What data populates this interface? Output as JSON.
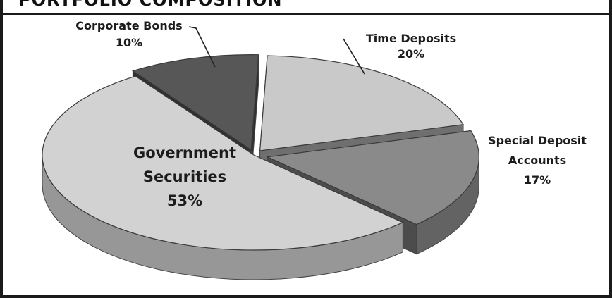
{
  "header": {
    "title": "PORTFOLIO COMPOSITION"
  },
  "chart_data": {
    "type": "pie",
    "title": "PORTFOLIO COMPOSITION",
    "categories": [
      "Time Deposits",
      "Special Deposit Accounts",
      "Government Securities",
      "Corporate Bonds"
    ],
    "values": [
      20,
      17,
      53,
      10
    ],
    "unit": "%",
    "style": "3d",
    "exploded": true,
    "labels": [
      {
        "lines": [
          "Time Deposits",
          "20%"
        ]
      },
      {
        "lines": [
          "Special Deposit",
          "Accounts",
          "17%"
        ]
      },
      {
        "lines": [
          "Government",
          "Securities",
          "53%"
        ]
      },
      {
        "lines": [
          "Corporate Bonds",
          "10%"
        ]
      }
    ],
    "colors": [
      "#c9c9c9",
      "#8a8a8a",
      "#d2d2d2",
      "#575757"
    ]
  }
}
